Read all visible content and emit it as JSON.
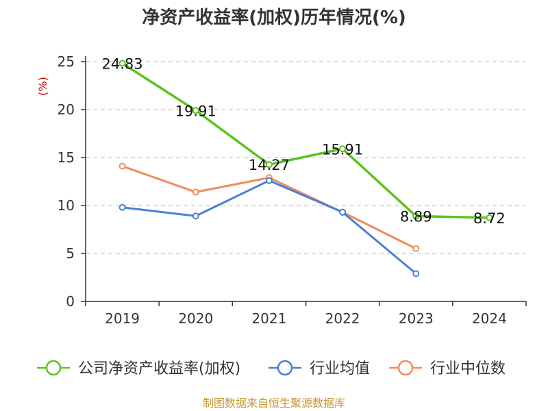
{
  "chart_data": {
    "type": "line",
    "title": "净资产收益率(加权)历年情况(%)",
    "ylabel": "(%)",
    "xlabel": "",
    "categories": [
      "2019",
      "2020",
      "2021",
      "2022",
      "2023",
      "2024"
    ],
    "ylim": [
      0,
      25
    ],
    "yticks": [
      0,
      5,
      10,
      15,
      20,
      25
    ],
    "grid": true,
    "legend_position": "bottom",
    "series": [
      {
        "name": "公司净资产收益率(加权)",
        "color": "#5cc21e",
        "values": [
          24.83,
          19.91,
          14.27,
          15.91,
          8.89,
          8.72
        ],
        "labels": [
          "24.83",
          "19.91",
          "14.27",
          "15.91",
          "8.89",
          "8.72"
        ]
      },
      {
        "name": "行业均值",
        "color": "#4a7fd6",
        "values": [
          9.8,
          8.9,
          12.6,
          9.3,
          2.9,
          null
        ]
      },
      {
        "name": "行业中位数",
        "color": "#f08c5a",
        "values": [
          14.1,
          11.4,
          12.9,
          9.3,
          5.5,
          null
        ]
      }
    ],
    "source": "制图数据来自恒生聚源数据库"
  }
}
